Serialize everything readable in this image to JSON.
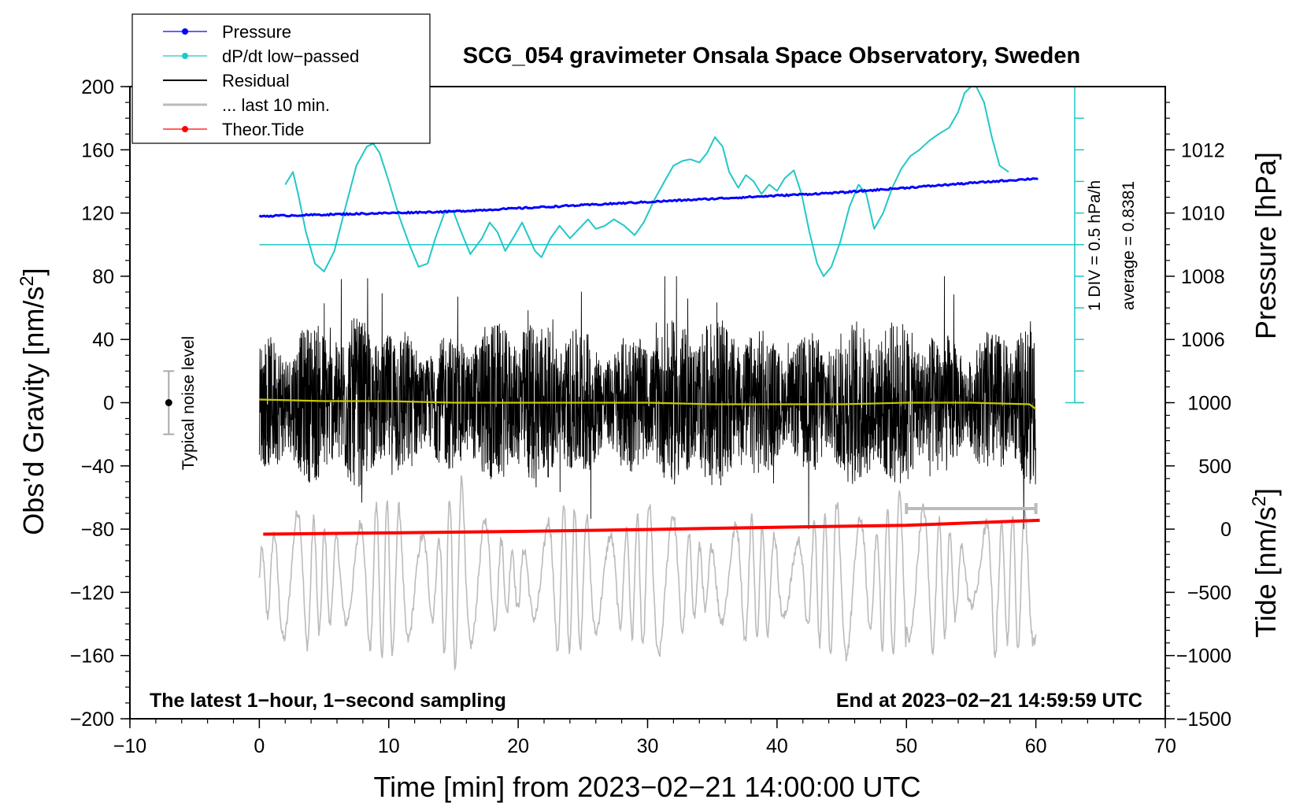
{
  "chart_data": {
    "type": "line",
    "title": "SCG_054 gravimeter Onsala Space Observatory, Sweden",
    "xlabel": "Time [min] from 2023−02−21 14:00:00 UTC",
    "ylabel_left": "Obs’d Gravity [nm/s",
    "ylabel_left_sup": "2",
    "ylabel_left_tail": "]",
    "ylabel_pressure": "Pressure [hPa]",
    "ylabel_tide": "Tide [nm/s",
    "ylabel_tide_sup": "2",
    "ylabel_tide_tail": "]",
    "xlim": [
      -10,
      70
    ],
    "ylim_left": [
      -200,
      200
    ],
    "x_ticks": [
      {
        "value": -10,
        "label": "−10"
      },
      {
        "value": 0,
        "label": "0"
      },
      {
        "value": 10,
        "label": "10"
      },
      {
        "value": 20,
        "label": "20"
      },
      {
        "value": 30,
        "label": "30"
      },
      {
        "value": 40,
        "label": "40"
      },
      {
        "value": 50,
        "label": "50"
      },
      {
        "value": 60,
        "label": "60"
      },
      {
        "value": 70,
        "label": "70"
      }
    ],
    "y_ticks_left": [
      {
        "value": 200,
        "label": "200"
      },
      {
        "value": 160,
        "label": "160"
      },
      {
        "value": 120,
        "label": "120"
      },
      {
        "value": 80,
        "label": "80"
      },
      {
        "value": 40,
        "label": "40"
      },
      {
        "value": 0,
        "label": "0"
      },
      {
        "value": -40,
        "label": "−40"
      },
      {
        "value": -80,
        "label": "−80"
      },
      {
        "value": -120,
        "label": "−120"
      },
      {
        "value": -160,
        "label": "−160"
      },
      {
        "value": -200,
        "label": "−200"
      }
    ],
    "pressure_axis": {
      "ylim_hpa": [
        1004,
        1014
      ],
      "ticks": [
        {
          "value": 1012,
          "label": "1012"
        },
        {
          "value": 1010,
          "label": "1010"
        },
        {
          "value": 1008,
          "label": "1008"
        },
        {
          "value": 1006,
          "label": "1006"
        }
      ]
    },
    "tide_axis": {
      "ylim": [
        -1500,
        1000
      ],
      "ticks": [
        {
          "value": 1000,
          "label": "1000"
        },
        {
          "value": 500,
          "label": "500"
        },
        {
          "value": 0,
          "label": "0"
        },
        {
          "value": -500,
          "label": "−500"
        },
        {
          "value": -1000,
          "label": "−1000"
        },
        {
          "value": -1500,
          "label": "−1500"
        }
      ]
    },
    "dpdt_axis": {
      "label_div": "1 DIV = 0.5 hPa/h",
      "label_avg": "average = 0.8381",
      "baseline_left_units": 100,
      "top_left_units": 200,
      "bottom_left_units": 0,
      "divisions": 10
    },
    "noise_bar": {
      "label": "Typical noise level",
      "x_min": -7,
      "center": 0,
      "half_range": 20
    },
    "last10_bar": {
      "x_start": 50,
      "x_end": 60,
      "y_left_units": -67
    },
    "annotation_left": "The latest 1−hour, 1−second sampling",
    "annotation_right": "End at 2023−02−21 14:59:59 UTC",
    "legend": [
      {
        "label": "Pressure",
        "color": "#0000ff",
        "marker": "dot"
      },
      {
        "label": "dP/dt low−passed",
        "color": "#22c7c7",
        "marker": "dot"
      },
      {
        "label": "Residual",
        "color": "#000000",
        "marker": "none"
      },
      {
        "label": "... last 10 min.",
        "color": "#bbbbbb",
        "marker": "none"
      },
      {
        "label": "Theor.Tide",
        "color": "#ff0000",
        "marker": "dot"
      }
    ],
    "series": [
      {
        "name": "Pressure",
        "units": "hPa",
        "color": "#0000ff",
        "x": [
          0,
          5,
          10,
          15,
          20,
          25,
          30,
          35,
          40,
          45,
          50,
          55,
          60.3
        ],
        "y": [
          1009.9,
          1009.95,
          1010.0,
          1010.05,
          1010.15,
          1010.25,
          1010.35,
          1010.45,
          1010.55,
          1010.65,
          1010.8,
          1010.95,
          1011.1
        ]
      },
      {
        "name": "dP/dt low−passed",
        "units": "left-axis units",
        "color": "#22c7c7",
        "x": [
          2,
          2.6,
          3,
          3.6,
          4.3,
          5,
          5.8,
          6.6,
          7.5,
          8.3,
          8.8,
          9.3,
          10,
          10.8,
          11.6,
          12.3,
          13,
          13.6,
          14.3,
          15,
          15.5,
          16.3,
          17.2,
          17.8,
          18.4,
          19,
          19.6,
          20.3,
          21.3,
          21.8,
          22.5,
          23.2,
          24,
          24.7,
          25.4,
          26,
          26.7,
          27.4,
          28.2,
          29,
          29.7,
          30.5,
          31.3,
          32,
          32.7,
          33.3,
          34,
          34.6,
          35.2,
          35.8,
          36.3,
          37,
          37.6,
          38.2,
          38.8,
          39.4,
          40,
          40.6,
          41.3,
          41.9,
          42.5,
          43.1,
          43.6,
          44.2,
          44.9,
          45.6,
          46.3,
          46.9,
          47.5,
          48.2,
          48.9,
          49.6,
          50.3,
          51,
          51.8,
          52.5,
          53.3,
          54,
          54.5,
          55,
          55.4,
          56,
          56.6,
          57.2,
          57.9
        ],
        "y": [
          138,
          146,
          132,
          108,
          88,
          83,
          96,
          122,
          150,
          162,
          164,
          158,
          140,
          118,
          100,
          86,
          88,
          104,
          120,
          121,
          110,
          94,
          104,
          114,
          108,
          96,
          104,
          114,
          96,
          92,
          104,
          112,
          104,
          110,
          116,
          110,
          112,
          116,
          112,
          106,
          114,
          128,
          140,
          150,
          153,
          154,
          152,
          158,
          168,
          162,
          146,
          136,
          144,
          140,
          132,
          138,
          134,
          142,
          147,
          132,
          108,
          88,
          80,
          86,
          102,
          124,
          138,
          132,
          110,
          120,
          136,
          148,
          156,
          160,
          166,
          170,
          174,
          184,
          196,
          200,
          200,
          190,
          168,
          150,
          146
        ]
      },
      {
        "name": "Residual",
        "units": "nm/s2",
        "color": "#000000",
        "x_range": [
          0,
          60
        ],
        "amplitude_typical": 40,
        "amplitude_peak": 80
      },
      {
        "name": "Residual smoothed",
        "units": "nm/s2",
        "color": "#c8c800",
        "x": [
          0,
          5,
          10,
          15,
          20,
          25,
          30,
          35,
          40,
          45,
          50,
          55,
          59.5,
          60
        ],
        "y": [
          2,
          1,
          1,
          0,
          0,
          0,
          0,
          -1,
          -1,
          -1,
          0,
          0,
          -1,
          -4
        ]
      },
      {
        "name": "... last 10 min.",
        "units": "nm/s2",
        "color": "#bbbbbb",
        "x_range": [
          0,
          60
        ],
        "baseline": -112,
        "amplitude_typical": 25,
        "amplitude_peak": 75
      },
      {
        "name": "Theor.Tide",
        "units": "nm/s2",
        "color": "#ff0000",
        "x": [
          0.3,
          10,
          20,
          30,
          40,
          50,
          60.3
        ],
        "y": [
          -40,
          -30,
          -18,
          -3,
          15,
          30,
          70
        ]
      }
    ]
  }
}
